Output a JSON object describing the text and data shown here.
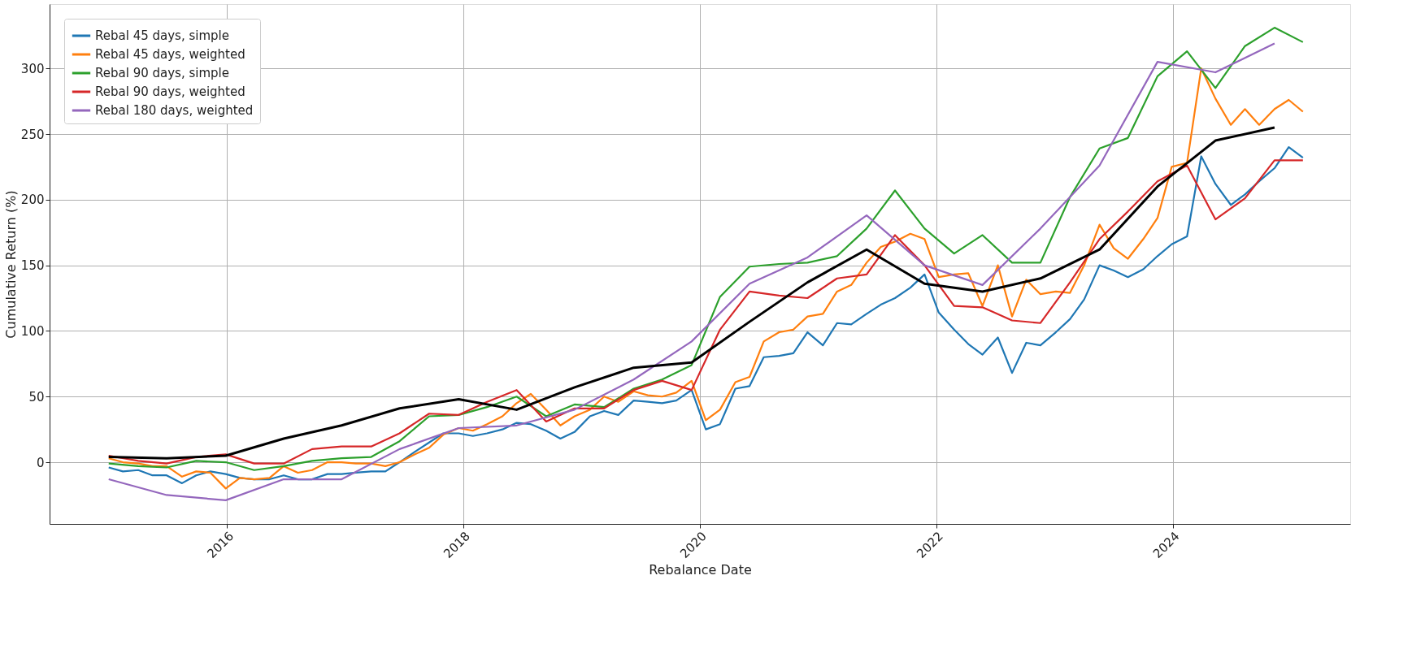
{
  "chart_data": {
    "type": "line",
    "xlabel": "Rebalance Date",
    "ylabel": "Cumulative Return (%)",
    "xlim": [
      2014.5,
      2025.5
    ],
    "xticks": [
      2016,
      2018,
      2020,
      2022,
      2024
    ],
    "ylim": [
      -47,
      349
    ],
    "yticks": [
      0,
      50,
      100,
      150,
      200,
      250,
      300
    ],
    "grid": true,
    "legend": "top left",
    "line_style": "solid",
    "marker": "none",
    "series": [
      {
        "name": "Rebal 45 days, simple",
        "color": "#1f77b4",
        "x": [
          2015.0,
          2015.12,
          2015.25,
          2015.37,
          2015.49,
          2015.62,
          2015.74,
          2015.86,
          2015.99,
          2016.11,
          2016.23,
          2016.36,
          2016.48,
          2016.6,
          2016.72,
          2016.85,
          2016.97,
          2017.09,
          2017.22,
          2017.34,
          2017.46,
          2017.59,
          2017.71,
          2017.83,
          2017.96,
          2018.08,
          2018.2,
          2018.33,
          2018.45,
          2018.57,
          2018.7,
          2018.82,
          2018.94,
          2019.07,
          2019.19,
          2019.31,
          2019.44,
          2019.56,
          2019.68,
          2019.8,
          2019.93,
          2020.05,
          2020.17,
          2020.3,
          2020.42,
          2020.54,
          2020.67,
          2020.79,
          2020.91,
          2021.04,
          2021.16,
          2021.28,
          2021.41,
          2021.53,
          2021.65,
          2021.78,
          2021.9,
          2022.02,
          2022.15,
          2022.27,
          2022.39,
          2022.52,
          2022.64,
          2022.76,
          2022.88,
          2023.01,
          2023.13,
          2023.25,
          2023.38,
          2023.5,
          2023.62,
          2023.75,
          2023.87,
          2023.99,
          2024.12,
          2024.24,
          2024.36,
          2024.49,
          2024.61,
          2024.73,
          2024.86,
          2024.98,
          2025.1
        ],
        "values": [
          -4,
          -7,
          -6,
          -10,
          -10,
          -16,
          -10,
          -7,
          -9,
          -12,
          -13,
          -13,
          -10,
          -13,
          -13,
          -9,
          -9,
          -8,
          -7,
          -7,
          0,
          8,
          15,
          22,
          22,
          20,
          22,
          25,
          30,
          29,
          24,
          18,
          23,
          35,
          39,
          36,
          47,
          46,
          45,
          47,
          55,
          25,
          29,
          56,
          58,
          80,
          81,
          83,
          99,
          89,
          106,
          105,
          113,
          120,
          125,
          133,
          143,
          114,
          101,
          90,
          82,
          95,
          68,
          91,
          89,
          99,
          109,
          124,
          150,
          146,
          141,
          147,
          157,
          166,
          172,
          233,
          212,
          196,
          204,
          214,
          224,
          240,
          232
        ]
      },
      {
        "name": "Rebal 45 days, weighted",
        "color": "#ff7f0e",
        "x": [
          2015.0,
          2015.12,
          2015.25,
          2015.37,
          2015.49,
          2015.62,
          2015.74,
          2015.86,
          2015.99,
          2016.11,
          2016.23,
          2016.36,
          2016.48,
          2016.6,
          2016.72,
          2016.85,
          2016.97,
          2017.09,
          2017.22,
          2017.34,
          2017.46,
          2017.59,
          2017.71,
          2017.83,
          2017.96,
          2018.08,
          2018.2,
          2018.33,
          2018.45,
          2018.57,
          2018.7,
          2018.82,
          2018.94,
          2019.07,
          2019.19,
          2019.31,
          2019.44,
          2019.56,
          2019.68,
          2019.8,
          2019.93,
          2020.05,
          2020.17,
          2020.3,
          2020.42,
          2020.54,
          2020.67,
          2020.79,
          2020.91,
          2021.04,
          2021.16,
          2021.28,
          2021.41,
          2021.53,
          2021.65,
          2021.78,
          2021.9,
          2022.02,
          2022.15,
          2022.27,
          2022.39,
          2022.52,
          2022.64,
          2022.76,
          2022.88,
          2023.01,
          2023.13,
          2023.25,
          2023.38,
          2023.5,
          2023.62,
          2023.75,
          2023.87,
          2023.99,
          2024.12,
          2024.24,
          2024.36,
          2024.49,
          2024.61,
          2024.73,
          2024.86,
          2024.98,
          2025.1
        ],
        "values": [
          3,
          0,
          -1,
          -3,
          -3,
          -11,
          -7,
          -8,
          -20,
          -12,
          -13,
          -12,
          -3,
          -8,
          -6,
          0,
          0,
          -1,
          -1,
          -3,
          0,
          6,
          11,
          21,
          26,
          24,
          29,
          35,
          45,
          52,
          40,
          28,
          35,
          40,
          50,
          46,
          54,
          51,
          50,
          53,
          62,
          32,
          40,
          61,
          65,
          92,
          99,
          101,
          111,
          113,
          130,
          135,
          152,
          164,
          168,
          174,
          170,
          141,
          143,
          144,
          119,
          150,
          111,
          139,
          128,
          130,
          129,
          150,
          181,
          163,
          155,
          170,
          186,
          225,
          228,
          300,
          277,
          257,
          269,
          257,
          269,
          276,
          267
        ]
      },
      {
        "name": "Rebal 90 days, simple",
        "color": "#2ca02c",
        "x": [
          2015.0,
          2015.25,
          2015.49,
          2015.74,
          2015.99,
          2016.23,
          2016.48,
          2016.72,
          2016.97,
          2017.22,
          2017.46,
          2017.71,
          2017.96,
          2018.2,
          2018.45,
          2018.7,
          2018.94,
          2019.19,
          2019.44,
          2019.68,
          2019.93,
          2020.17,
          2020.42,
          2020.67,
          2020.91,
          2021.16,
          2021.41,
          2021.65,
          2021.9,
          2022.15,
          2022.39,
          2022.64,
          2022.88,
          2023.13,
          2023.38,
          2023.62,
          2023.87,
          2024.12,
          2024.36,
          2024.61,
          2024.86,
          2025.1
        ],
        "values": [
          -1,
          -3,
          -4,
          1,
          0,
          -6,
          -3,
          1,
          3,
          4,
          16,
          35,
          36,
          42,
          50,
          35,
          44,
          42,
          56,
          63,
          74,
          126,
          149,
          151,
          152,
          157,
          178,
          207,
          178,
          159,
          173,
          152,
          152,
          202,
          239,
          247,
          294,
          313,
          285,
          317,
          331,
          320
        ]
      },
      {
        "name": "Rebal 90 days, weighted",
        "color": "#d62728",
        "x": [
          2015.0,
          2015.25,
          2015.49,
          2015.74,
          2015.99,
          2016.23,
          2016.48,
          2016.72,
          2016.97,
          2017.22,
          2017.46,
          2017.71,
          2017.96,
          2018.2,
          2018.45,
          2018.7,
          2018.94,
          2019.19,
          2019.44,
          2019.68,
          2019.93,
          2020.17,
          2020.42,
          2020.67,
          2020.91,
          2021.16,
          2021.41,
          2021.65,
          2021.9,
          2022.15,
          2022.39,
          2022.64,
          2022.88,
          2023.13,
          2023.38,
          2023.62,
          2023.87,
          2024.12,
          2024.36,
          2024.61,
          2024.86,
          2025.1
        ],
        "values": [
          5,
          1,
          -1,
          4,
          6,
          -1,
          -1,
          10,
          12,
          12,
          22,
          37,
          36,
          46,
          55,
          31,
          41,
          41,
          55,
          62,
          55,
          101,
          130,
          127,
          125,
          140,
          143,
          173,
          150,
          119,
          118,
          108,
          106,
          137,
          170,
          191,
          214,
          226,
          185,
          201,
          230,
          230
        ]
      },
      {
        "name": "Rebal 180 days, weighted",
        "color": "#9467bd",
        "x": [
          2015.0,
          2015.49,
          2015.99,
          2016.48,
          2016.97,
          2017.46,
          2017.96,
          2018.45,
          2018.94,
          2019.44,
          2019.93,
          2020.42,
          2020.91,
          2021.41,
          2021.9,
          2022.39,
          2022.88,
          2023.38,
          2023.87,
          2024.36,
          2024.86
        ],
        "values": [
          -13,
          -25,
          -29,
          -13,
          -13,
          10,
          26,
          28,
          40,
          63,
          92,
          136,
          156,
          188,
          150,
          135,
          178,
          226,
          305,
          297,
          319
        ]
      },
      {
        "color": "#000000",
        "x": [
          2015.0,
          2015.49,
          2015.99,
          2016.48,
          2016.97,
          2017.46,
          2017.96,
          2018.45,
          2018.94,
          2019.44,
          2019.93,
          2020.42,
          2020.91,
          2021.41,
          2021.9,
          2022.39,
          2022.88,
          2023.38,
          2023.87,
          2024.36,
          2024.86
        ],
        "values": [
          4,
          3,
          5,
          18,
          28,
          41,
          48,
          40,
          57,
          72,
          76,
          107,
          137,
          162,
          136,
          130,
          140,
          162,
          210,
          245,
          255
        ]
      }
    ]
  }
}
